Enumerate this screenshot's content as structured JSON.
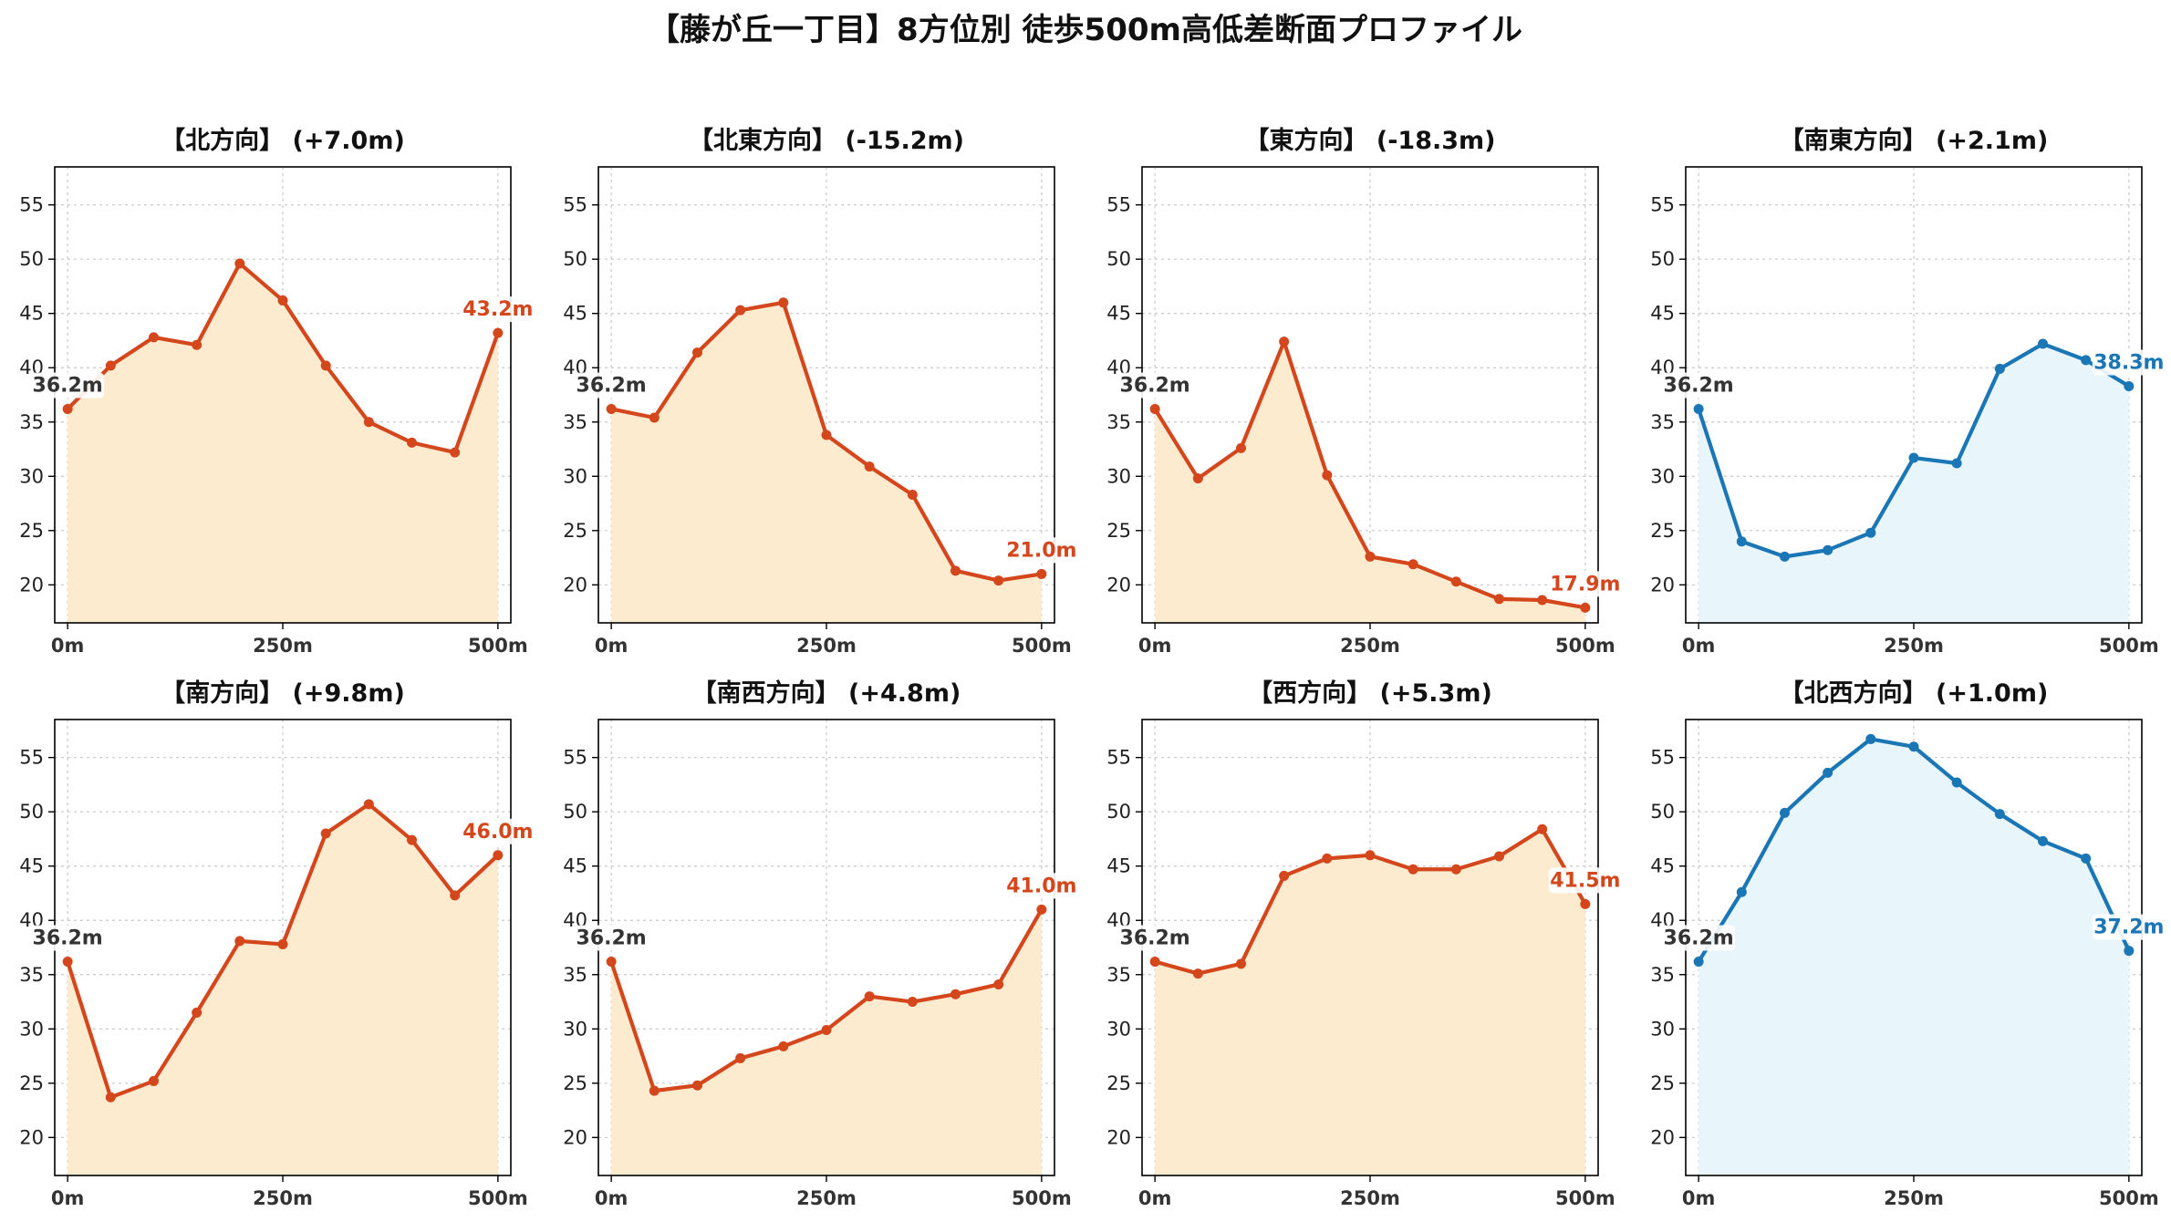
{
  "title": "【藤が丘一丁目】8方位別 徒歩500m高低差断面プロファイル",
  "colors": {
    "descent_line": "#d4461c",
    "descent_fill": "#fdebd0",
    "ascent_line": "#1a76b5",
    "ascent_fill": "#e8f5fb",
    "start_label": "#333333"
  },
  "chart_data": [
    {
      "type": "area",
      "title": "【北方向】 (+7.0m)",
      "x": [
        0,
        50,
        100,
        150,
        200,
        250,
        300,
        350,
        400,
        450,
        500
      ],
      "y": [
        36.2,
        40.2,
        42.8,
        42.1,
        49.6,
        46.2,
        40.2,
        35.0,
        33.1,
        32.2,
        43.2
      ],
      "xticks": [
        "0m",
        "250m",
        "500m"
      ],
      "yticks": [
        20,
        25,
        30,
        35,
        40,
        45,
        50,
        55
      ],
      "xlim": [
        -15,
        515
      ],
      "ylim": [
        16.5,
        58.5
      ],
      "start_label": "36.2m",
      "end_label": "43.2m",
      "color_scheme": "descent",
      "grid": true
    },
    {
      "type": "area",
      "title": "【北東方向】 (-15.2m)",
      "x": [
        0,
        50,
        100,
        150,
        200,
        250,
        300,
        350,
        400,
        450,
        500
      ],
      "y": [
        36.2,
        35.4,
        41.4,
        45.3,
        46.0,
        33.8,
        30.9,
        28.3,
        21.3,
        20.4,
        21.0
      ],
      "xticks": [
        "0m",
        "250m",
        "500m"
      ],
      "yticks": [
        20,
        25,
        30,
        35,
        40,
        45,
        50,
        55
      ],
      "xlim": [
        -15,
        515
      ],
      "ylim": [
        16.5,
        58.5
      ],
      "start_label": "36.2m",
      "end_label": "21.0m",
      "color_scheme": "descent",
      "grid": true
    },
    {
      "type": "area",
      "title": "【東方向】 (-18.3m)",
      "x": [
        0,
        50,
        100,
        150,
        200,
        250,
        300,
        350,
        400,
        450,
        500
      ],
      "y": [
        36.2,
        29.8,
        32.6,
        42.4,
        30.1,
        22.6,
        21.9,
        20.3,
        18.7,
        18.6,
        17.9
      ],
      "xticks": [
        "0m",
        "250m",
        "500m"
      ],
      "yticks": [
        20,
        25,
        30,
        35,
        40,
        45,
        50,
        55
      ],
      "xlim": [
        -15,
        515
      ],
      "ylim": [
        16.5,
        58.5
      ],
      "start_label": "36.2m",
      "end_label": "17.9m",
      "color_scheme": "descent",
      "grid": true
    },
    {
      "type": "area",
      "title": "【南東方向】 (+2.1m)",
      "x": [
        0,
        50,
        100,
        150,
        200,
        250,
        300,
        350,
        400,
        450,
        500
      ],
      "y": [
        36.2,
        24.0,
        22.6,
        23.2,
        24.8,
        31.7,
        31.2,
        39.9,
        42.2,
        40.7,
        38.3
      ],
      "xticks": [
        "0m",
        "250m",
        "500m"
      ],
      "yticks": [
        20,
        25,
        30,
        35,
        40,
        45,
        50,
        55
      ],
      "xlim": [
        -15,
        515
      ],
      "ylim": [
        16.5,
        58.5
      ],
      "start_label": "36.2m",
      "end_label": "38.3m",
      "color_scheme": "ascent",
      "grid": true
    },
    {
      "type": "area",
      "title": "【南方向】 (+9.8m)",
      "x": [
        0,
        50,
        100,
        150,
        200,
        250,
        300,
        350,
        400,
        450,
        500
      ],
      "y": [
        36.2,
        23.7,
        25.2,
        31.5,
        38.1,
        37.8,
        48.0,
        50.7,
        47.4,
        42.3,
        46.0
      ],
      "xticks": [
        "0m",
        "250m",
        "500m"
      ],
      "yticks": [
        20,
        25,
        30,
        35,
        40,
        45,
        50,
        55
      ],
      "xlim": [
        -15,
        515
      ],
      "ylim": [
        16.5,
        58.5
      ],
      "start_label": "36.2m",
      "end_label": "46.0m",
      "color_scheme": "descent",
      "grid": true
    },
    {
      "type": "area",
      "title": "【南西方向】 (+4.8m)",
      "x": [
        0,
        50,
        100,
        150,
        200,
        250,
        300,
        350,
        400,
        450,
        500
      ],
      "y": [
        36.2,
        24.3,
        24.8,
        27.3,
        28.4,
        29.9,
        33.0,
        32.5,
        33.2,
        34.1,
        41.0
      ],
      "xticks": [
        "0m",
        "250m",
        "500m"
      ],
      "yticks": [
        20,
        25,
        30,
        35,
        40,
        45,
        50,
        55
      ],
      "xlim": [
        -15,
        515
      ],
      "ylim": [
        16.5,
        58.5
      ],
      "start_label": "36.2m",
      "end_label": "41.0m",
      "color_scheme": "descent",
      "grid": true
    },
    {
      "type": "area",
      "title": "【西方向】 (+5.3m)",
      "x": [
        0,
        50,
        100,
        150,
        200,
        250,
        300,
        350,
        400,
        450,
        500
      ],
      "y": [
        36.2,
        35.1,
        36.0,
        44.1,
        45.7,
        46.0,
        44.7,
        44.7,
        45.9,
        48.4,
        41.5
      ],
      "xticks": [
        "0m",
        "250m",
        "500m"
      ],
      "yticks": [
        20,
        25,
        30,
        35,
        40,
        45,
        50,
        55
      ],
      "xlim": [
        -15,
        515
      ],
      "ylim": [
        16.5,
        58.5
      ],
      "start_label": "36.2m",
      "end_label": "41.5m",
      "color_scheme": "descent",
      "grid": true
    },
    {
      "type": "area",
      "title": "【北西方向】 (+1.0m)",
      "x": [
        0,
        50,
        100,
        150,
        200,
        250,
        300,
        350,
        400,
        450,
        500
      ],
      "y": [
        36.2,
        42.6,
        49.9,
        53.6,
        56.7,
        56.0,
        52.7,
        49.8,
        47.3,
        45.7,
        37.2
      ],
      "xticks": [
        "0m",
        "250m",
        "500m"
      ],
      "yticks": [
        20,
        25,
        30,
        35,
        40,
        45,
        50,
        55
      ],
      "xlim": [
        -15,
        515
      ],
      "ylim": [
        16.5,
        58.5
      ],
      "start_label": "36.2m",
      "end_label": "37.2m",
      "color_scheme": "ascent",
      "grid": true
    }
  ]
}
